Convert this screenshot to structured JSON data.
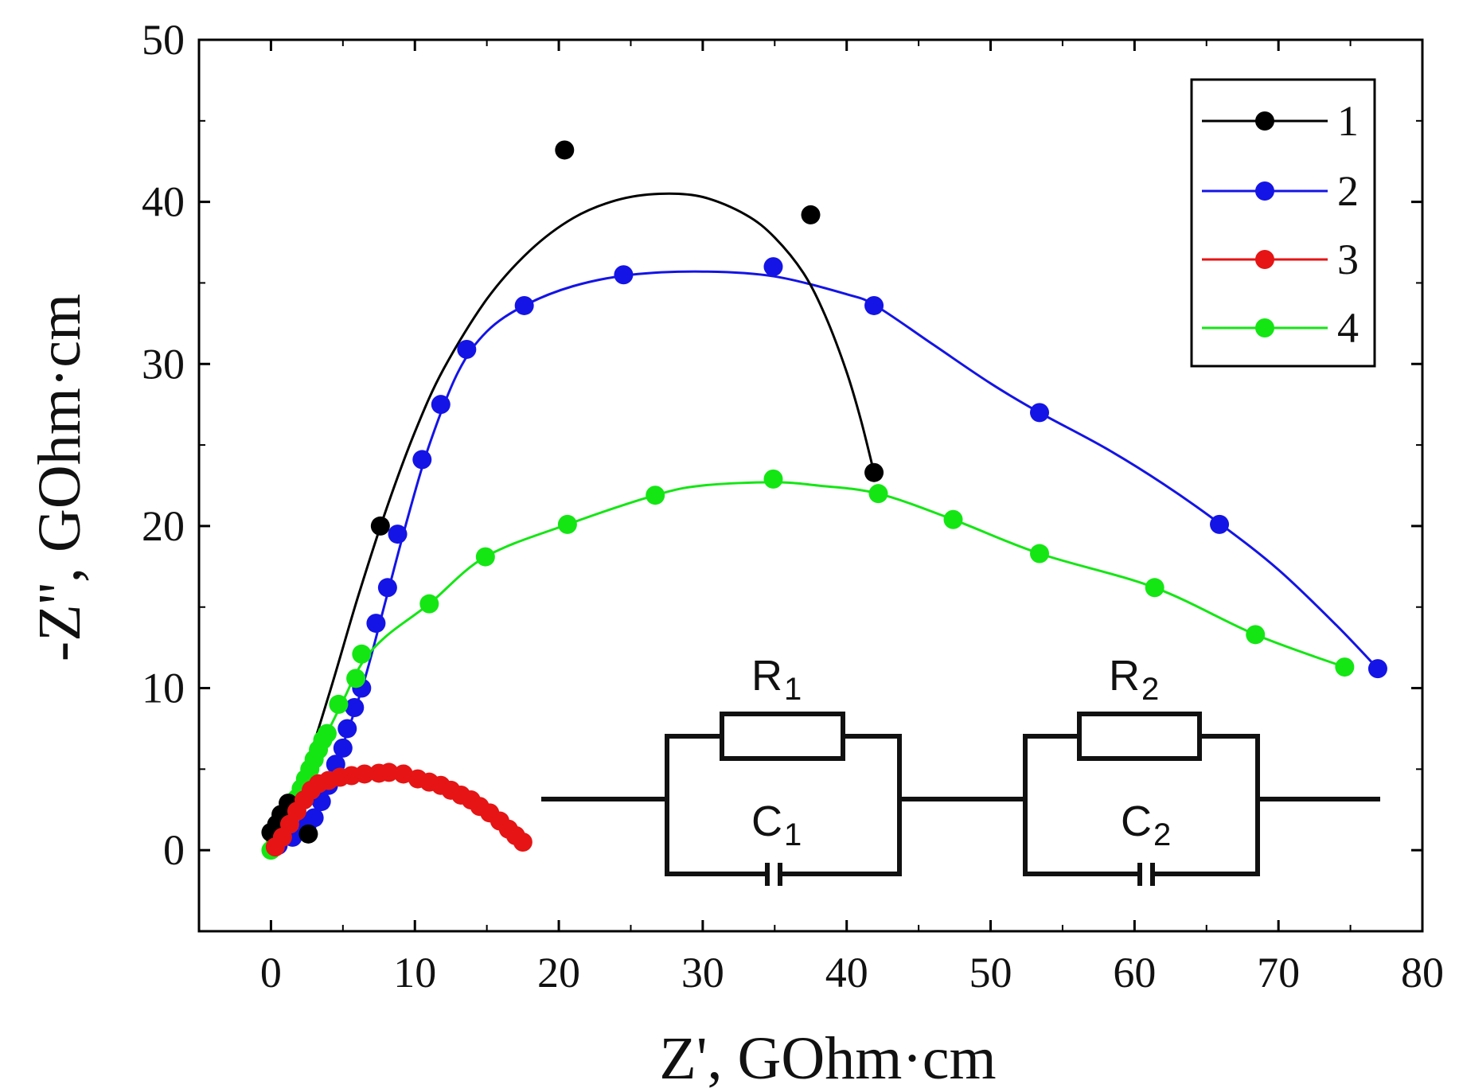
{
  "chart_data": {
    "type": "scatter",
    "title": "",
    "xlabel": "Z', GOhm·cm",
    "ylabel": "-Z'', GOhm·cm",
    "xlim": [
      -5,
      80
    ],
    "ylim": [
      -5,
      50
    ],
    "xticks": [
      0,
      10,
      20,
      30,
      40,
      50,
      60,
      70,
      80
    ],
    "yticks": [
      0,
      10,
      20,
      30,
      40,
      50
    ],
    "xtick_labels": [
      "0",
      "10",
      "20",
      "30",
      "40",
      "50",
      "60",
      "70",
      "80"
    ],
    "ytick_labels": [
      "0",
      "10",
      "20",
      "30",
      "40",
      "50"
    ],
    "grid": false,
    "legend_position": "top-right",
    "series": [
      {
        "name": "1",
        "color": "#000000",
        "points": [
          [
            0,
            1.1
          ],
          [
            0.4,
            1.6
          ],
          [
            0.7,
            2.2
          ],
          [
            1.2,
            2.9
          ],
          [
            2.6,
            1.0
          ],
          [
            7.6,
            20.0
          ],
          [
            20.4,
            43.2
          ],
          [
            37.5,
            39.2
          ],
          [
            41.9,
            23.3
          ]
        ],
        "fit": [
          [
            0,
            0
          ],
          [
            2,
            4
          ],
          [
            4,
            9.5
          ],
          [
            6,
            15.5
          ],
          [
            8,
            21
          ],
          [
            10,
            25.8
          ],
          [
            12,
            29.7
          ],
          [
            15,
            34
          ],
          [
            18,
            37
          ],
          [
            21,
            39
          ],
          [
            24,
            40.1
          ],
          [
            27,
            40.5
          ],
          [
            30,
            40.3
          ],
          [
            33,
            39.2
          ],
          [
            35,
            37.8
          ],
          [
            37,
            35.6
          ],
          [
            38.5,
            33
          ],
          [
            40,
            29.5
          ],
          [
            41,
            26.5
          ],
          [
            41.9,
            23.3
          ]
        ]
      },
      {
        "name": "2",
        "color": "#1414e6",
        "points": [
          [
            0.5,
            0.3
          ],
          [
            1.5,
            0.8
          ],
          [
            2.5,
            1.5
          ],
          [
            3.0,
            2.0
          ],
          [
            3.5,
            3.0
          ],
          [
            4.0,
            4.0
          ],
          [
            4.5,
            5.3
          ],
          [
            5.0,
            6.3
          ],
          [
            5.3,
            7.5
          ],
          [
            5.8,
            8.8
          ],
          [
            6.3,
            10.0
          ],
          [
            7.3,
            14.0
          ],
          [
            8.1,
            16.2
          ],
          [
            8.8,
            19.5
          ],
          [
            10.5,
            24.1
          ],
          [
            11.8,
            27.5
          ],
          [
            13.6,
            30.9
          ],
          [
            17.6,
            33.6
          ],
          [
            24.5,
            35.5
          ],
          [
            34.9,
            36.0
          ],
          [
            41.9,
            33.6
          ],
          [
            53.4,
            27.0
          ],
          [
            65.9,
            20.1
          ],
          [
            76.9,
            11.2
          ]
        ],
        "fit": [
          [
            0,
            0
          ],
          [
            2,
            1.2
          ],
          [
            3.5,
            3
          ],
          [
            5,
            6.5
          ],
          [
            6.5,
            10.5
          ],
          [
            8,
            15.5
          ],
          [
            9.5,
            20.5
          ],
          [
            11,
            25
          ],
          [
            13,
            29.5
          ],
          [
            15,
            32
          ],
          [
            17.6,
            33.6
          ],
          [
            21,
            34.8
          ],
          [
            25,
            35.5
          ],
          [
            30,
            35.7
          ],
          [
            35,
            35.4
          ],
          [
            40,
            34.3
          ],
          [
            42,
            33.6
          ],
          [
            46,
            31.2
          ],
          [
            50,
            28.8
          ],
          [
            53.4,
            27.0
          ],
          [
            58,
            24.8
          ],
          [
            62,
            22.6
          ],
          [
            66,
            20.1
          ],
          [
            70,
            17.3
          ],
          [
            74,
            13.9
          ],
          [
            76.9,
            11.2
          ]
        ]
      },
      {
        "name": "3",
        "color": "#e61414",
        "points": [
          [
            0.3,
            0.2
          ],
          [
            0.8,
            0.8
          ],
          [
            1.3,
            1.6
          ],
          [
            1.8,
            2.4
          ],
          [
            2.3,
            3.1
          ],
          [
            2.8,
            3.7
          ],
          [
            3.3,
            4.1
          ],
          [
            4.0,
            4.3
          ],
          [
            4.8,
            4.5
          ],
          [
            5.6,
            4.6
          ],
          [
            6.5,
            4.7
          ],
          [
            7.5,
            4.75
          ],
          [
            8.2,
            4.8
          ],
          [
            9.2,
            4.7
          ],
          [
            10.2,
            4.4
          ],
          [
            11.0,
            4.2
          ],
          [
            11.8,
            4.0
          ],
          [
            12.5,
            3.7
          ],
          [
            13.2,
            3.4
          ],
          [
            13.9,
            3.1
          ],
          [
            14.5,
            2.7
          ],
          [
            15.2,
            2.3
          ],
          [
            15.9,
            1.8
          ],
          [
            16.5,
            1.3
          ],
          [
            17.0,
            0.9
          ],
          [
            17.5,
            0.5
          ]
        ],
        "fit": [
          [
            0,
            0
          ],
          [
            0.8,
            0.8
          ],
          [
            1.8,
            2.4
          ],
          [
            2.8,
            3.7
          ],
          [
            4,
            4.3
          ],
          [
            5.6,
            4.6
          ],
          [
            7.5,
            4.75
          ],
          [
            9.2,
            4.7
          ],
          [
            11,
            4.2
          ],
          [
            12.5,
            3.7
          ],
          [
            13.9,
            3.1
          ],
          [
            15.2,
            2.3
          ],
          [
            16.5,
            1.3
          ],
          [
            17.5,
            0.5
          ]
        ]
      },
      {
        "name": "4",
        "color": "#14e614",
        "points": [
          [
            0,
            0
          ],
          [
            0.3,
            0.5
          ],
          [
            0.6,
            1.0
          ],
          [
            0.9,
            1.5
          ],
          [
            1.2,
            2.0
          ],
          [
            1.5,
            2.6
          ],
          [
            1.8,
            3.2
          ],
          [
            2.1,
            3.8
          ],
          [
            2.4,
            4.4
          ],
          [
            2.7,
            5.0
          ],
          [
            3.0,
            5.6
          ],
          [
            3.3,
            6.2
          ],
          [
            3.6,
            6.8
          ],
          [
            3.9,
            7.2
          ],
          [
            4.7,
            9.0
          ],
          [
            5.9,
            10.6
          ],
          [
            6.3,
            12.1
          ],
          [
            11.0,
            15.2
          ],
          [
            14.9,
            18.1
          ],
          [
            20.6,
            20.1
          ],
          [
            26.7,
            21.9
          ],
          [
            34.9,
            22.9
          ],
          [
            42.2,
            22.0
          ],
          [
            47.4,
            20.4
          ],
          [
            53.4,
            18.3
          ],
          [
            61.4,
            16.2
          ],
          [
            68.4,
            13.3
          ],
          [
            74.6,
            11.3
          ]
        ],
        "fit": [
          [
            0,
            0
          ],
          [
            1,
            1.7
          ],
          [
            2,
            3.6
          ],
          [
            3,
            5.6
          ],
          [
            4,
            7.4
          ],
          [
            5,
            9.2
          ],
          [
            6.3,
            11.5
          ],
          [
            8,
            13.2
          ],
          [
            11,
            15.2
          ],
          [
            14.9,
            18.1
          ],
          [
            20.6,
            20.1
          ],
          [
            26.7,
            21.9
          ],
          [
            30,
            22.5
          ],
          [
            34.9,
            22.7
          ],
          [
            38,
            22.5
          ],
          [
            42.2,
            22.0
          ],
          [
            47.4,
            20.4
          ],
          [
            53.4,
            18.3
          ],
          [
            61.4,
            16.2
          ],
          [
            68.4,
            13.3
          ],
          [
            74.6,
            11.3
          ]
        ]
      }
    ],
    "inset": {
      "type": "equivalent-circuit",
      "labels": {
        "r1": "R",
        "r1_sub": "1",
        "c1": "C",
        "c1_sub": "1",
        "r2": "R",
        "r2_sub": "2",
        "c2": "C",
        "c2_sub": "2"
      }
    }
  }
}
